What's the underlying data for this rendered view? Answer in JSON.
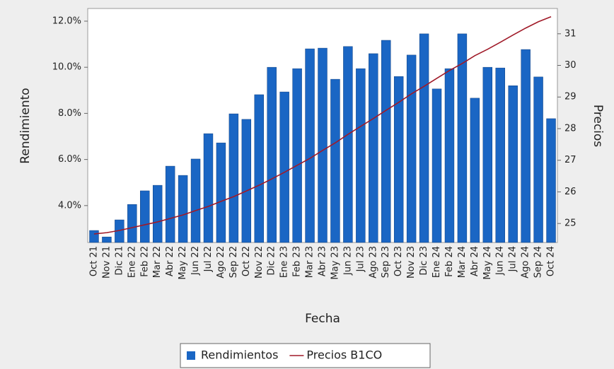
{
  "chart_data": {
    "type": "bar",
    "x_label": "Fecha",
    "y_label": "Rendimiento",
    "y2_label": "Precios",
    "categories": [
      "Oct 21",
      "Nov 21",
      "Dic 21",
      "Ene 22",
      "Feb 22",
      "Mar 22",
      "Abr 22",
      "May 22",
      "Jun 22",
      "Jul 22",
      "Ago 22",
      "Sep 22",
      "Oct 22",
      "Nov 22",
      "Dic 22",
      "Ene 23",
      "Feb 23",
      "Mar 23",
      "Abr 23",
      "May 23",
      "Jun 23",
      "Jul 23",
      "Ago 23",
      "Sep 23",
      "Oct 23",
      "Nov 23",
      "Dic 23",
      "Ene 24",
      "Feb 24",
      "Mar 24",
      "Abr 24",
      "May 24",
      "Jun 24",
      "Jul 24",
      "Ago 24",
      "Sep 24",
      "Oct 24"
    ],
    "series": [
      {
        "name": "Rendimientos",
        "type": "bar",
        "color": "#1a66c4",
        "values": [
          2.92,
          2.64,
          3.38,
          4.05,
          4.64,
          4.88,
          5.71,
          5.31,
          6.02,
          7.12,
          6.72,
          7.98,
          7.74,
          8.81,
          10.0,
          8.93,
          9.94,
          10.8,
          10.83,
          9.48,
          10.9,
          9.94,
          10.59,
          11.17,
          9.6,
          10.53,
          11.45,
          9.06,
          9.94,
          11.45,
          8.66,
          10.0,
          9.97,
          9.2,
          10.77,
          9.58,
          7.77
        ]
      },
      {
        "name": "Precios B1CO",
        "type": "line",
        "axis": "y2",
        "color": "#a01a28",
        "values": [
          24.67,
          24.71,
          24.78,
          24.87,
          24.96,
          25.05,
          25.16,
          25.27,
          25.41,
          25.54,
          25.7,
          25.85,
          26.03,
          26.21,
          26.41,
          26.62,
          26.84,
          27.06,
          27.31,
          27.55,
          27.82,
          28.07,
          28.32,
          28.58,
          28.83,
          29.1,
          29.34,
          29.59,
          29.84,
          30.06,
          30.31,
          30.51,
          30.73,
          30.96,
          31.18,
          31.38,
          31.54
        ]
      }
    ],
    "ylim": [
      2.4,
      12.55
    ],
    "yticks": [
      {
        "value": 4,
        "label": "4.0%"
      },
      {
        "value": 6,
        "label": "6.0%"
      },
      {
        "value": 8,
        "label": "8.0%"
      },
      {
        "value": 10,
        "label": "10.0%"
      },
      {
        "value": 12,
        "label": "12.0%"
      }
    ],
    "y2lim": [
      24.4,
      31.8
    ],
    "y2ticks": [
      25,
      26,
      27,
      28,
      29,
      30,
      31
    ],
    "legend": "bottom"
  }
}
